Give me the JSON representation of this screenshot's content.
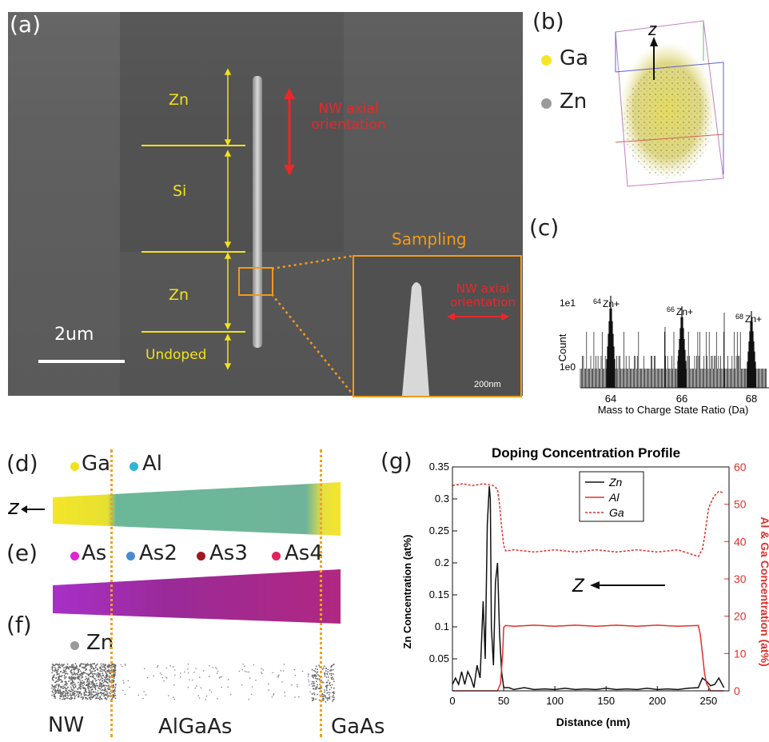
{
  "panel_a": {
    "label": "(a)",
    "segments": [
      "Zn",
      "Si",
      "Zn",
      "Undoped"
    ],
    "axial_label": "NW axial orientation",
    "scale_bar": "2um",
    "sampling": "Sampling",
    "inset_axial_label": "NW axial orientation",
    "inset_scale": "200nm"
  },
  "panel_b": {
    "label": "(b)",
    "axis": "z",
    "legend": [
      {
        "name": "Ga",
        "color": "#f5e625"
      },
      {
        "name": "Zn",
        "color": "#9a9a9a"
      }
    ]
  },
  "panel_c": {
    "label": "(c)",
    "ylabel": "Count",
    "ytick_top": "1e1",
    "ytick_bottom": "1e0",
    "xlabel": "Mass to Charge State Ratio (Da)",
    "xticks": [
      "64",
      "66",
      "68"
    ],
    "peaks": [
      {
        "mass": "64",
        "ion": "Zn+"
      },
      {
        "mass": "66",
        "ion": "Zn+"
      },
      {
        "mass": "68",
        "ion": "Zn+"
      }
    ]
  },
  "panel_d": {
    "label": "(d)",
    "axis": "z",
    "legend": [
      {
        "name": "Ga",
        "color": "#f2e21a"
      },
      {
        "name": "Al",
        "color": "#2bb7d8"
      }
    ]
  },
  "panel_e": {
    "label": "(e)",
    "legend": [
      {
        "name": "As",
        "color": "#e024d6"
      },
      {
        "name": "As2",
        "color": "#4a8ad0"
      },
      {
        "name": "As3",
        "color": "#a01820"
      },
      {
        "name": "As4",
        "color": "#e0245c"
      }
    ]
  },
  "panel_f": {
    "label": "(f)",
    "legend": [
      {
        "name": "Zn",
        "color": "#999999"
      }
    ],
    "regions": [
      "NW",
      "AlGaAs",
      "GaAs"
    ]
  },
  "panel_g": {
    "label": "(g)",
    "z_label": "Z",
    "chart_data": {
      "type": "line",
      "title": "Doping Concentration Profile",
      "xlabel": "Distance (nm)",
      "ylabel_left": "Zn Concentration (at%)",
      "ylabel_right": "Al & Ga Concentration (at%)",
      "xlim": [
        0,
        270
      ],
      "ylim_left": [
        0,
        0.35
      ],
      "ylim_right": [
        0,
        60
      ],
      "xticks": [
        "0",
        "50",
        "100",
        "150",
        "200",
        "250"
      ],
      "yticks_left": [
        "0.05",
        "0.1",
        "0.15",
        "0.2",
        "0.25",
        "0.3",
        "0.35"
      ],
      "yticks_right": [
        "0",
        "10",
        "20",
        "30",
        "40",
        "50",
        "60"
      ],
      "legend_position": "top-center",
      "series": [
        {
          "name": "Zn",
          "axis": "left",
          "color": "#111111",
          "style": "solid",
          "x": [
            0,
            3,
            6,
            9,
            12,
            15,
            18,
            21,
            24,
            27,
            30,
            32,
            34,
            36,
            37,
            38,
            40,
            42,
            44,
            46,
            48,
            50,
            55,
            60,
            70,
            80,
            90,
            100,
            110,
            120,
            130,
            140,
            150,
            160,
            170,
            180,
            190,
            200,
            210,
            220,
            230,
            240,
            244,
            248,
            252,
            256,
            260,
            265
          ],
          "y": [
            0.01,
            0.02,
            0.01,
            0.03,
            0.01,
            0.03,
            0.02,
            0.005,
            0.04,
            0.02,
            0.14,
            0.05,
            0.26,
            0.32,
            0.3,
            0.1,
            0.04,
            0.17,
            0.2,
            0.09,
            0.03,
            0.005,
            0.005,
            0.002,
            0.005,
            0.002,
            0.003,
            0.002,
            0.004,
            0.002,
            0.003,
            0.002,
            0.004,
            0.002,
            0.003,
            0.002,
            0.004,
            0.002,
            0.003,
            0.002,
            0.004,
            0.005,
            0.02,
            0.015,
            0.008,
            0.01,
            0.02,
            0.005
          ]
        },
        {
          "name": "Al",
          "axis": "right",
          "color": "#e0302a",
          "style": "solid",
          "x": [
            0,
            44,
            47,
            49,
            50,
            52,
            60,
            80,
            100,
            120,
            140,
            160,
            180,
            200,
            220,
            240,
            242,
            244,
            246,
            248,
            252,
            260,
            265
          ],
          "y": [
            0,
            0,
            2,
            10,
            17,
            17.5,
            17.3,
            17.6,
            17.3,
            17.6,
            17.3,
            17.6,
            17.3,
            17.6,
            17.3,
            17.5,
            15,
            10,
            5,
            2,
            0,
            0,
            0
          ]
        },
        {
          "name": "Ga",
          "axis": "right",
          "color": "#e0302a",
          "style": "dashed",
          "x": [
            0,
            10,
            20,
            30,
            40,
            44,
            46,
            48,
            50,
            52,
            60,
            80,
            100,
            120,
            140,
            160,
            180,
            200,
            220,
            240,
            242,
            244,
            246,
            248,
            250,
            255,
            260,
            265
          ],
          "y": [
            55,
            55.5,
            55,
            55.5,
            55,
            54,
            50,
            44,
            39,
            37.5,
            37.8,
            37.2,
            37.8,
            37.2,
            37.8,
            37.2,
            37.8,
            37.2,
            37.8,
            36,
            37,
            38,
            41,
            45,
            49,
            52,
            53.5,
            53
          ]
        }
      ]
    }
  }
}
